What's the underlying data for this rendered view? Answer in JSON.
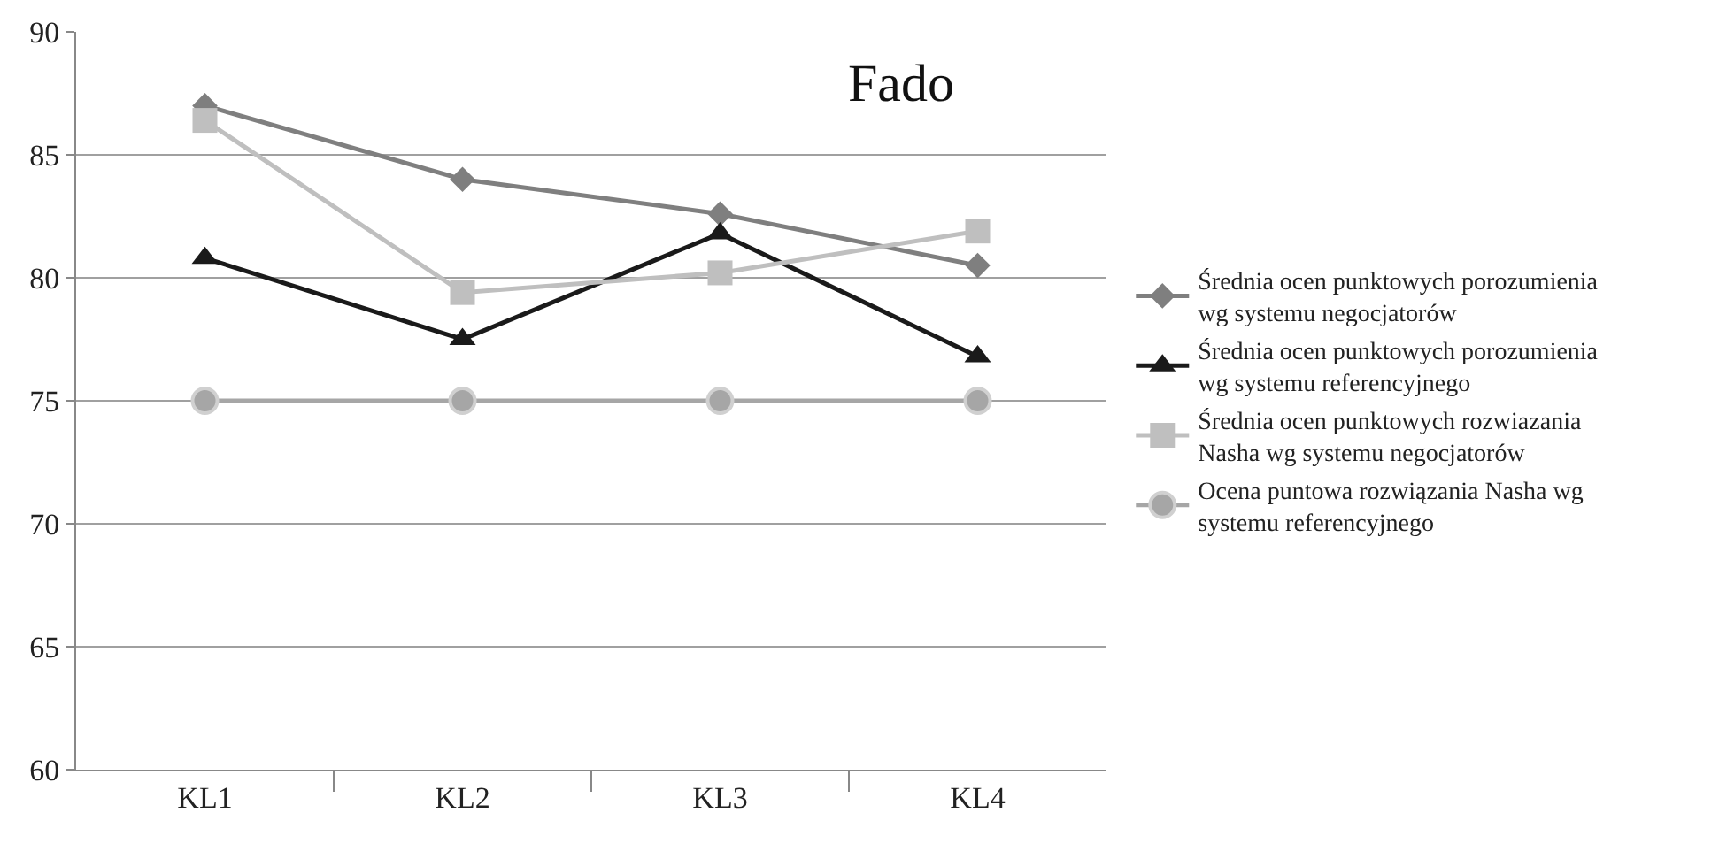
{
  "chart_data": {
    "type": "line",
    "title": "Fado",
    "categories": [
      "KL1",
      "KL2",
      "KL3",
      "KL4"
    ],
    "series": [
      {
        "name": "Średnia ocen punktowych porozumienia wg systemu negocjatorów",
        "color": "#7f7f7f",
        "marker": "diamond",
        "values": [
          87,
          84,
          82.6,
          80.5
        ]
      },
      {
        "name": "Średnia ocen punktowych porozumienia wg systemu referencyjnego",
        "color": "#1a1a1a",
        "marker": "triangle",
        "values": [
          80.8,
          77.5,
          81.8,
          76.8
        ]
      },
      {
        "name": "Średnia ocen punktowych rozwiazania Nasha wg systemu negocjatorów",
        "color": "#bfbfbf",
        "marker": "square",
        "values": [
          86.4,
          79.4,
          80.2,
          81.9
        ]
      },
      {
        "name": "Ocena puntowa rozwiązania Nasha wg systemu referencyjnego",
        "color": "#a6a6a6",
        "marker": "circle",
        "values": [
          75,
          75,
          75,
          75
        ]
      }
    ],
    "ylim": [
      60,
      90
    ],
    "yticks": [
      60,
      65,
      70,
      75,
      80,
      85,
      90
    ],
    "grid": "y",
    "legend": "right",
    "line_style": "solid"
  }
}
